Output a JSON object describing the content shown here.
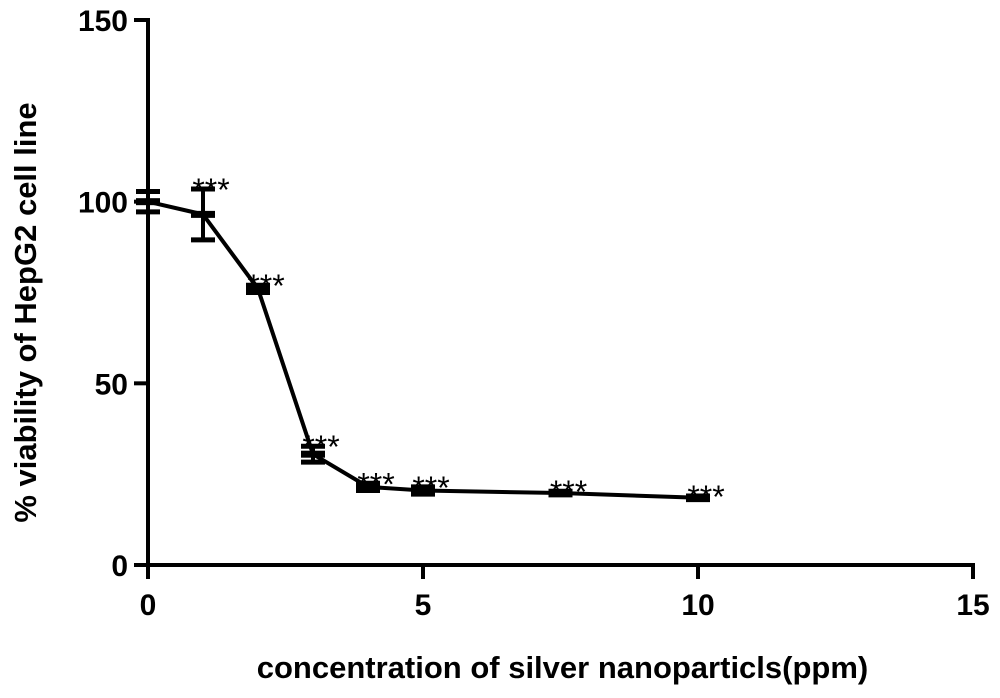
{
  "chart_data": {
    "type": "line",
    "title": "",
    "xlabel": "concentration of silver nanoparticls(ppm)",
    "ylabel": "% viability of HepG2 cell line",
    "xlim": [
      0,
      15
    ],
    "ylim": [
      0,
      150
    ],
    "xticks": [
      "0",
      "5",
      "10",
      "15"
    ],
    "yticks": [
      "0",
      "50",
      "100",
      "150"
    ],
    "grid": false,
    "legend": "none",
    "line_color": "#000000",
    "series": [
      {
        "x": [
          0,
          1,
          2,
          3,
          4,
          5,
          7.5,
          10
        ],
        "y": [
          100,
          96.5,
          76,
          30.5,
          21.5,
          20.5,
          19.8,
          18.5
        ],
        "err": [
          2.8,
          7,
          1,
          2.2,
          1,
          1,
          0.5,
          0.5
        ],
        "annotations": [
          "",
          "***",
          "***",
          "***",
          "***",
          "***",
          "***",
          "***"
        ]
      }
    ]
  }
}
